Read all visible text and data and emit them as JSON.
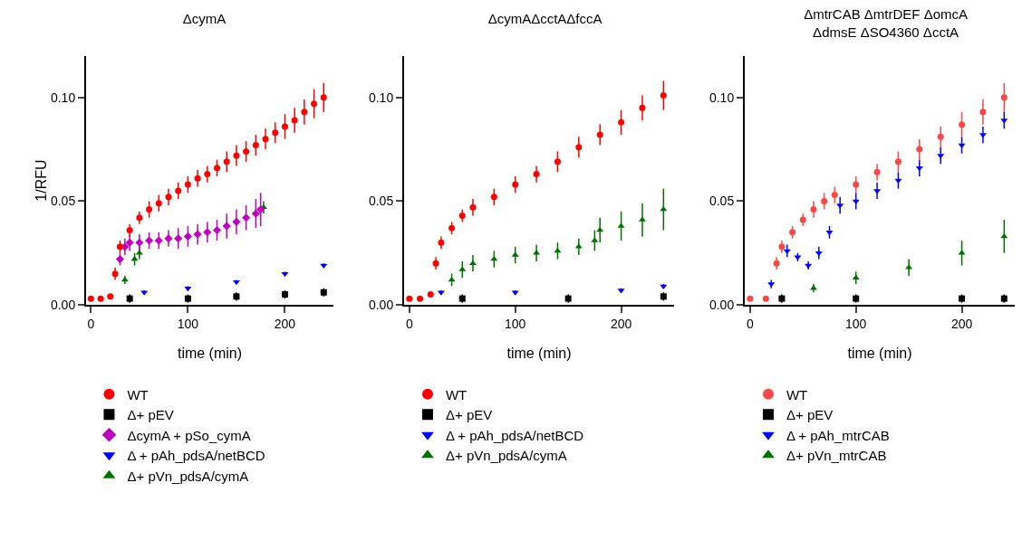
{
  "chart_data": [
    {
      "type": "scatter",
      "title": "ΔcymA",
      "xlabel": "time (min)",
      "ylabel": "1/RFU",
      "xlim": [
        -5,
        250
      ],
      "xticks": [
        0,
        100,
        200
      ],
      "ylim": [
        0,
        0.12
      ],
      "yticks": [
        {
          "value": 0,
          "label": "0.00"
        },
        {
          "value": 0.05,
          "label": "0.05"
        },
        {
          "value": 0.1,
          "label": "0.10"
        }
      ],
      "grid": false,
      "legend": "bottom",
      "series": [
        {
          "name": "WT",
          "color": "#ff0000",
          "marker": "circle",
          "x": [
            0,
            10,
            20,
            25,
            30,
            40,
            50,
            60,
            70,
            80,
            90,
            100,
            110,
            120,
            130,
            140,
            150,
            160,
            170,
            180,
            190,
            200,
            210,
            220,
            230,
            240
          ],
          "values": [
            0.003,
            0.003,
            0.004,
            0.015,
            0.028,
            0.036,
            0.042,
            0.046,
            0.049,
            0.052,
            0.055,
            0.058,
            0.061,
            0.063,
            0.066,
            0.069,
            0.072,
            0.074,
            0.077,
            0.08,
            0.083,
            0.086,
            0.089,
            0.093,
            0.097,
            0.1
          ],
          "errors": [
            null,
            null,
            null,
            0.003,
            0.003,
            0.003,
            0.003,
            0.004,
            0.004,
            0.004,
            0.004,
            0.004,
            0.004,
            0.004,
            0.004,
            0.005,
            0.005,
            0.005,
            0.005,
            0.005,
            0.005,
            0.006,
            0.006,
            0.006,
            0.007,
            0.007
          ]
        },
        {
          "name": "Δ+ pEV",
          "color": "#000000",
          "marker": "square",
          "x": [
            40,
            100,
            150,
            200,
            240
          ],
          "values": [
            0.003,
            0.003,
            0.004,
            0.005,
            0.006
          ],
          "errors": [
            0.002,
            0.002,
            0.002,
            0.002,
            0.002
          ]
        },
        {
          "name": "ΔcymA + pSo_cymA",
          "color": "#c000c0",
          "marker": "diamond",
          "x": [
            30,
            35,
            40,
            50,
            60,
            70,
            80,
            90,
            100,
            110,
            120,
            130,
            140,
            150,
            160,
            170,
            175
          ],
          "values": [
            0.022,
            0.028,
            0.03,
            0.03,
            0.031,
            0.031,
            0.032,
            0.032,
            0.033,
            0.034,
            0.035,
            0.036,
            0.038,
            0.04,
            0.042,
            0.044,
            0.046
          ],
          "errors": [
            0.003,
            0.004,
            0.004,
            0.004,
            0.004,
            0.004,
            0.004,
            0.005,
            0.005,
            0.005,
            0.005,
            0.005,
            0.006,
            0.006,
            0.006,
            0.007,
            0.008
          ]
        },
        {
          "name": "Δ + pAh_pdsA/netBCD",
          "color": "#0000ff",
          "marker": "triangle-down",
          "x": [
            55,
            100,
            150,
            200,
            240
          ],
          "values": [
            0.006,
            0.008,
            0.011,
            0.015,
            0.019
          ],
          "errors": [
            0.001,
            0.001,
            0.001,
            0.001,
            0.001
          ]
        },
        {
          "name": "Δ+ pVn_pdsA/cymA",
          "color": "#007000",
          "marker": "triangle",
          "x": [
            35,
            45,
            50,
            178
          ],
          "values": [
            0.012,
            0.022,
            0.025,
            0.047
          ],
          "errors": [
            0.002,
            0.003,
            0.003,
            0.003
          ]
        }
      ]
    },
    {
      "type": "scatter",
      "title": "ΔcymAΔcctAΔfccA",
      "xlabel": "time (min)",
      "xlim": [
        -5,
        250
      ],
      "xticks": [
        0,
        100,
        200
      ],
      "ylim": [
        0,
        0.12
      ],
      "yticks": [
        {
          "value": 0,
          "label": "0.00"
        },
        {
          "value": 0.05,
          "label": "0.05"
        },
        {
          "value": 0.1,
          "label": "0.10"
        }
      ],
      "grid": false,
      "legend": "bottom",
      "series": [
        {
          "name": "WT",
          "color": "#ff0000",
          "marker": "circle",
          "x": [
            0,
            10,
            20,
            25,
            30,
            40,
            50,
            60,
            80,
            100,
            120,
            140,
            160,
            180,
            200,
            220,
            240
          ],
          "values": [
            0.003,
            0.003,
            0.005,
            0.02,
            0.03,
            0.037,
            0.043,
            0.047,
            0.052,
            0.058,
            0.063,
            0.069,
            0.076,
            0.082,
            0.088,
            0.095,
            0.101
          ],
          "errors": [
            null,
            null,
            null,
            0.003,
            0.003,
            0.003,
            0.003,
            0.004,
            0.004,
            0.004,
            0.004,
            0.005,
            0.005,
            0.005,
            0.006,
            0.006,
            0.007
          ]
        },
        {
          "name": "Δ+ pEV",
          "color": "#000000",
          "marker": "square",
          "x": [
            50,
            150,
            240
          ],
          "values": [
            0.003,
            0.003,
            0.004
          ],
          "errors": [
            0.002,
            0.002,
            0.002
          ]
        },
        {
          "name": "Δ + pAh_pdsA/netBCD",
          "color": "#0000ff",
          "marker": "triangle-down",
          "x": [
            30,
            100,
            200,
            240
          ],
          "values": [
            0.006,
            0.006,
            0.007,
            0.009
          ],
          "errors": [
            0.001,
            0.001,
            0.001,
            0.001
          ]
        },
        {
          "name": "Δ+ pVn_pdsA/cymA",
          "color": "#007000",
          "marker": "triangle",
          "x": [
            40,
            50,
            60,
            80,
            100,
            120,
            140,
            160,
            175,
            180,
            200,
            220,
            240
          ],
          "values": [
            0.012,
            0.017,
            0.02,
            0.022,
            0.024,
            0.025,
            0.026,
            0.028,
            0.031,
            0.036,
            0.038,
            0.041,
            0.046
          ],
          "errors": [
            0.003,
            0.004,
            0.004,
            0.004,
            0.004,
            0.004,
            0.004,
            0.004,
            0.005,
            0.006,
            0.007,
            0.008,
            0.01
          ]
        }
      ]
    },
    {
      "type": "scatter",
      "title": "ΔmtrCAB ΔmtrDEF ΔomcA\nΔdmsE ΔSO4360 ΔcctA",
      "xlabel": "time (min)",
      "xlim": [
        -5,
        250
      ],
      "xticks": [
        0,
        100,
        200
      ],
      "ylim": [
        0,
        0.12
      ],
      "yticks": [
        {
          "value": 0,
          "label": "0.00"
        },
        {
          "value": 0.05,
          "label": "0.05"
        },
        {
          "value": 0.1,
          "label": "0.10"
        }
      ],
      "grid": false,
      "legend": "bottom",
      "series": [
        {
          "name": "WT",
          "color": "#f84848",
          "marker": "circle",
          "x": [
            0,
            15,
            25,
            30,
            40,
            50,
            60,
            70,
            80,
            100,
            120,
            140,
            160,
            180,
            200,
            220,
            240
          ],
          "values": [
            0.003,
            0.003,
            0.02,
            0.028,
            0.035,
            0.041,
            0.046,
            0.05,
            0.053,
            0.058,
            0.064,
            0.069,
            0.075,
            0.081,
            0.087,
            0.093,
            0.1
          ],
          "errors": [
            null,
            null,
            0.003,
            0.003,
            0.003,
            0.003,
            0.004,
            0.004,
            0.004,
            0.004,
            0.004,
            0.005,
            0.005,
            0.005,
            0.006,
            0.006,
            0.007
          ]
        },
        {
          "name": "Δ+ pEV",
          "color": "#000000",
          "marker": "square",
          "x": [
            30,
            100,
            200,
            240
          ],
          "values": [
            0.003,
            0.003,
            0.003,
            0.003
          ],
          "errors": [
            0.002,
            0.002,
            0.002,
            0.002
          ]
        },
        {
          "name": "Δ + pAh_mtrCAB",
          "color": "#0000ff",
          "marker": "triangle-down",
          "x": [
            20,
            35,
            45,
            55,
            65,
            75,
            85,
            100,
            120,
            140,
            160,
            180,
            200,
            220,
            240
          ],
          "values": [
            0.01,
            0.026,
            0.023,
            0.019,
            0.025,
            0.035,
            0.048,
            0.05,
            0.055,
            0.06,
            0.066,
            0.072,
            0.077,
            0.082,
            0.089
          ],
          "errors": [
            0.002,
            0.003,
            0.002,
            0.002,
            0.003,
            0.003,
            0.004,
            0.004,
            0.004,
            0.004,
            0.004,
            0.004,
            0.004,
            0.004,
            0.004
          ]
        },
        {
          "name": "Δ+ pVn_mtrCAB",
          "color": "#007000",
          "marker": "triangle",
          "x": [
            60,
            100,
            150,
            200,
            240
          ],
          "values": [
            0.008,
            0.013,
            0.018,
            0.025,
            0.033
          ],
          "errors": [
            0.002,
            0.003,
            0.004,
            0.006,
            0.008
          ]
        }
      ]
    }
  ]
}
